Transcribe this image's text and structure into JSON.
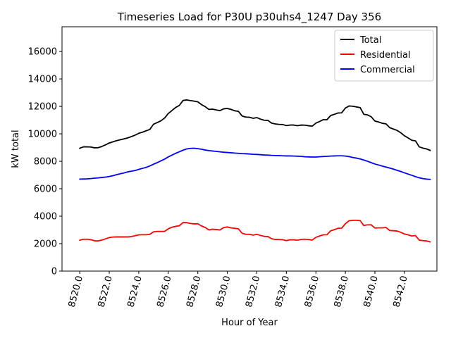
{
  "chart_data": {
    "type": "line",
    "title": "Timeseries Load for P30U p30uhs4_1247  Day 356",
    "xlabel": "Hour of Year",
    "ylabel": "kW total",
    "xlim": [
      8518.8,
      8544.2
    ],
    "ylim": [
      0,
      17800
    ],
    "xticks": [
      8520,
      8522,
      8524,
      8526,
      8528,
      8530,
      8532,
      8534,
      8536,
      8538,
      8540,
      8542
    ],
    "xtick_labels": [
      "8520.0",
      "8522.0",
      "8524.0",
      "8526.0",
      "8528.0",
      "8530.0",
      "8532.0",
      "8534.0",
      "8536.0",
      "8538.0",
      "8540.0",
      "8542.0"
    ],
    "yticks": [
      0,
      2000,
      4000,
      6000,
      8000,
      10000,
      12000,
      14000,
      16000
    ],
    "ytick_labels": [
      "0",
      "2000",
      "4000",
      "6000",
      "8000",
      "10000",
      "12000",
      "14000",
      "16000"
    ],
    "grid": false,
    "legend_position": "top-right",
    "x": [
      8520.0,
      8520.25,
      8520.5,
      8520.75,
      8521.0,
      8521.25,
      8521.5,
      8521.75,
      8522.0,
      8522.25,
      8522.5,
      8522.75,
      8523.0,
      8523.25,
      8523.5,
      8523.75,
      8524.0,
      8524.25,
      8524.5,
      8524.75,
      8525.0,
      8525.25,
      8525.5,
      8525.75,
      8526.0,
      8526.25,
      8526.5,
      8526.75,
      8527.0,
      8527.25,
      8527.5,
      8527.75,
      8528.0,
      8528.25,
      8528.5,
      8528.75,
      8529.0,
      8529.25,
      8529.5,
      8529.75,
      8530.0,
      8530.25,
      8530.5,
      8530.75,
      8531.0,
      8531.25,
      8531.5,
      8531.75,
      8532.0,
      8532.25,
      8532.5,
      8532.75,
      8533.0,
      8533.25,
      8533.5,
      8533.75,
      8534.0,
      8534.25,
      8534.5,
      8534.75,
      8535.0,
      8535.25,
      8535.5,
      8535.75,
      8536.0,
      8536.25,
      8536.5,
      8536.75,
      8537.0,
      8537.25,
      8537.5,
      8537.75,
      8538.0,
      8538.25,
      8538.5,
      8538.75,
      8539.0,
      8539.25,
      8539.5,
      8539.75,
      8540.0,
      8540.25,
      8540.5,
      8540.75,
      8541.0,
      8541.25,
      8541.5,
      8541.75,
      8542.0,
      8542.25,
      8542.5,
      8542.75,
      8543.0,
      8543.25,
      8543.5,
      8543.75
    ],
    "series": [
      {
        "name": "Total",
        "color": "#000000",
        "values": [
          8950,
          9050,
          9050,
          9040,
          8980,
          8990,
          9080,
          9200,
          9330,
          9420,
          9500,
          9570,
          9630,
          9700,
          9800,
          9900,
          10040,
          10120,
          10220,
          10320,
          10700,
          10820,
          10950,
          11150,
          11480,
          11700,
          11920,
          12070,
          12430,
          12470,
          12420,
          12380,
          12330,
          12130,
          11980,
          11780,
          11800,
          11740,
          11690,
          11820,
          11850,
          11780,
          11680,
          11640,
          11300,
          11220,
          11210,
          11130,
          11180,
          11070,
          10990,
          10980,
          10780,
          10720,
          10690,
          10680,
          10600,
          10640,
          10640,
          10590,
          10640,
          10630,
          10590,
          10560,
          10780,
          10900,
          11030,
          11030,
          11330,
          11420,
          11520,
          11530,
          11880,
          12030,
          12010,
          11960,
          11910,
          11420,
          11380,
          11240,
          10930,
          10860,
          10770,
          10730,
          10450,
          10350,
          10250,
          10080,
          9860,
          9700,
          9530,
          9490,
          9050,
          8960,
          8900,
          8790
        ]
      },
      {
        "name": "Residential",
        "color": "#ff0000",
        "values": [
          2250,
          2320,
          2320,
          2290,
          2210,
          2200,
          2260,
          2350,
          2440,
          2480,
          2490,
          2490,
          2490,
          2490,
          2520,
          2580,
          2640,
          2650,
          2650,
          2680,
          2860,
          2890,
          2890,
          2890,
          3080,
          3200,
          3260,
          3300,
          3540,
          3530,
          3470,
          3440,
          3450,
          3290,
          3180,
          3000,
          3050,
          3030,
          3000,
          3170,
          3220,
          3150,
          3120,
          3080,
          2760,
          2680,
          2680,
          2620,
          2680,
          2600,
          2530,
          2520,
          2360,
          2300,
          2300,
          2290,
          2220,
          2280,
          2280,
          2250,
          2310,
          2320,
          2300,
          2260,
          2460,
          2560,
          2640,
          2650,
          2930,
          3020,
          3120,
          3130,
          3450,
          3670,
          3700,
          3700,
          3680,
          3320,
          3370,
          3370,
          3140,
          3150,
          3150,
          3180,
          2960,
          2940,
          2920,
          2830,
          2700,
          2640,
          2560,
          2590,
          2260,
          2220,
          2200,
          2120
        ]
      },
      {
        "name": "Commercial",
        "color": "#0000ff",
        "values": [
          6700,
          6710,
          6720,
          6740,
          6770,
          6790,
          6820,
          6850,
          6890,
          6950,
          7030,
          7090,
          7150,
          7230,
          7280,
          7330,
          7410,
          7480,
          7560,
          7660,
          7790,
          7900,
          8030,
          8160,
          8320,
          8450,
          8580,
          8690,
          8810,
          8900,
          8940,
          8950,
          8920,
          8880,
          8820,
          8780,
          8750,
          8720,
          8690,
          8660,
          8640,
          8620,
          8600,
          8580,
          8560,
          8550,
          8530,
          8510,
          8500,
          8480,
          8460,
          8450,
          8430,
          8420,
          8410,
          8400,
          8390,
          8390,
          8380,
          8370,
          8360,
          8330,
          8320,
          8310,
          8310,
          8330,
          8350,
          8360,
          8380,
          8390,
          8400,
          8400,
          8380,
          8340,
          8280,
          8230,
          8170,
          8090,
          8000,
          7900,
          7800,
          7730,
          7650,
          7580,
          7510,
          7430,
          7340,
          7260,
          7160,
          7070,
          6980,
          6880,
          6800,
          6740,
          6700,
          6680
        ]
      }
    ]
  }
}
